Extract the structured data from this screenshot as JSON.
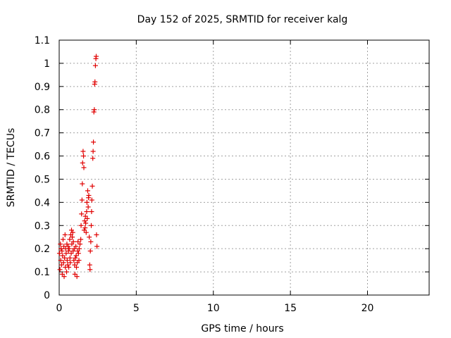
{
  "chart_data": {
    "type": "scatter",
    "title": "Day 152 of 2025, SRMTID for receiver kalg",
    "xlabel": "GPS time / hours",
    "ylabel": "SRMTID / TECUs",
    "xlim": [
      0,
      24
    ],
    "ylim": [
      0,
      1.1
    ],
    "xticks": [
      0,
      5,
      10,
      15,
      20
    ],
    "xtick_labels": [
      "0",
      "5",
      "10",
      "15",
      "20"
    ],
    "yticks": [
      0,
      0.1,
      0.2,
      0.3,
      0.4,
      0.5,
      0.6,
      0.7,
      0.8,
      0.9,
      1,
      1.1
    ],
    "ytick_labels": [
      "0",
      "0.1",
      "0.2",
      "0.3",
      "0.4",
      "0.5",
      "0.6",
      "0.7",
      "0.8",
      "0.9",
      "1",
      "1.1"
    ],
    "grid": true,
    "marker": "+",
    "colors": {
      "marker": "#e00000",
      "grid": "#a0a0a0",
      "axis": "#000000"
    },
    "series": [
      {
        "name": "SRMTID",
        "points": [
          [
            0.02,
            0.18
          ],
          [
            0.05,
            0.11
          ],
          [
            0.08,
            0.22
          ],
          [
            0.1,
            0.15
          ],
          [
            0.12,
            0.2
          ],
          [
            0.15,
            0.13
          ],
          [
            0.18,
            0.19
          ],
          [
            0.2,
            0.09
          ],
          [
            0.22,
            0.17
          ],
          [
            0.25,
            0.24
          ],
          [
            0.28,
            0.14
          ],
          [
            0.3,
            0.21
          ],
          [
            0.32,
            0.08
          ],
          [
            0.35,
            0.16
          ],
          [
            0.38,
            0.26
          ],
          [
            0.4,
            0.12
          ],
          [
            0.42,
            0.2
          ],
          [
            0.45,
            0.18
          ],
          [
            0.48,
            0.1
          ],
          [
            0.5,
            0.22
          ],
          [
            0.52,
            0.15
          ],
          [
            0.55,
            0.13
          ],
          [
            0.58,
            0.21
          ],
          [
            0.6,
            0.19
          ],
          [
            0.62,
            0.12
          ],
          [
            0.65,
            0.2
          ],
          [
            0.68,
            0.24
          ],
          [
            0.7,
            0.16
          ],
          [
            0.72,
            0.14
          ],
          [
            0.75,
            0.26
          ],
          [
            0.78,
            0.18
          ],
          [
            0.8,
            0.28
          ],
          [
            0.82,
            0.22
          ],
          [
            0.85,
            0.25
          ],
          [
            0.88,
            0.27
          ],
          [
            0.9,
            0.19
          ],
          [
            0.92,
            0.23
          ],
          [
            0.95,
            0.15
          ],
          [
            0.98,
            0.2
          ],
          [
            1.0,
            0.13
          ],
          [
            1.02,
            0.09
          ],
          [
            1.05,
            0.16
          ],
          [
            1.08,
            0.21
          ],
          [
            1.1,
            0.17
          ],
          [
            1.12,
            0.12
          ],
          [
            1.15,
            0.08
          ],
          [
            1.18,
            0.14
          ],
          [
            1.2,
            0.19
          ],
          [
            1.22,
            0.23
          ],
          [
            1.25,
            0.18
          ],
          [
            1.28,
            0.15
          ],
          [
            1.3,
            0.2
          ],
          [
            1.35,
            0.22
          ],
          [
            1.4,
            0.24
          ],
          [
            1.42,
            0.3
          ],
          [
            1.45,
            0.35
          ],
          [
            1.48,
            0.41
          ],
          [
            1.5,
            0.48
          ],
          [
            1.52,
            0.57
          ],
          [
            1.55,
            0.62
          ],
          [
            1.58,
            0.6
          ],
          [
            1.6,
            0.55
          ],
          [
            1.62,
            0.28
          ],
          [
            1.65,
            0.32
          ],
          [
            1.68,
            0.29
          ],
          [
            1.7,
            0.34
          ],
          [
            1.72,
            0.31
          ],
          [
            1.75,
            0.27
          ],
          [
            1.78,
            0.36
          ],
          [
            1.8,
            0.4
          ],
          [
            1.82,
            0.33
          ],
          [
            1.85,
            0.45
          ],
          [
            1.88,
            0.38
          ],
          [
            1.9,
            0.42
          ],
          [
            1.92,
            0.43
          ],
          [
            1.95,
            0.25
          ],
          [
            1.98,
            0.13
          ],
          [
            2.0,
            0.11
          ],
          [
            2.02,
            0.19
          ],
          [
            2.05,
            0.23
          ],
          [
            2.08,
            0.3
          ],
          [
            2.1,
            0.36
          ],
          [
            2.12,
            0.41
          ],
          [
            2.15,
            0.47
          ],
          [
            2.18,
            0.59
          ],
          [
            2.2,
            0.62
          ],
          [
            2.22,
            0.66
          ],
          [
            2.25,
            0.79
          ],
          [
            2.28,
            0.8
          ],
          [
            2.3,
            0.91
          ],
          [
            2.32,
            0.92
          ],
          [
            2.35,
            0.99
          ],
          [
            2.38,
            1.02
          ],
          [
            2.4,
            1.03
          ],
          [
            2.42,
            0.26
          ],
          [
            2.45,
            0.21
          ]
        ]
      }
    ]
  }
}
